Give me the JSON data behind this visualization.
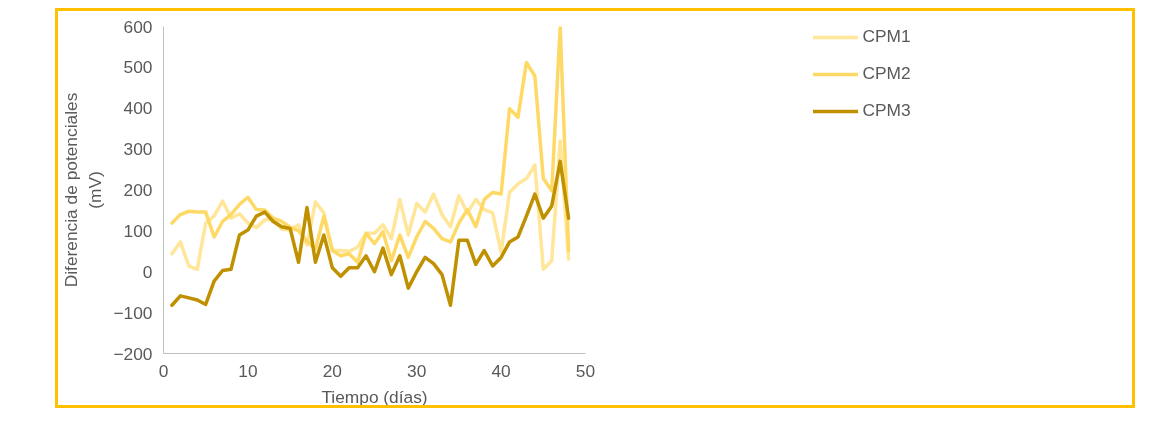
{
  "chart_data": {
    "type": "line",
    "xlabel": "Tiempo (días)",
    "ylabel": "Diferencia de potenciales (mV)",
    "x": [
      1,
      2,
      3,
      4,
      5,
      6,
      7,
      8,
      9,
      10,
      11,
      12,
      13,
      14,
      15,
      16,
      17,
      18,
      19,
      20,
      21,
      22,
      23,
      24,
      25,
      26,
      27,
      28,
      29,
      30,
      31,
      32,
      33,
      34,
      35,
      36,
      37,
      38,
      39,
      40,
      41,
      42,
      43,
      44,
      45,
      46,
      47,
      48
    ],
    "series": [
      {
        "name": "CPM1",
        "color": "#ffe699",
        "values": [
          44,
          73,
          14,
          6,
          119,
          136,
          173,
          131,
          142,
          119,
          108,
          127,
          129,
          104,
          102,
          115,
          65,
          171,
          144,
          52,
          52,
          50,
          60,
          94,
          94,
          115,
          81,
          177,
          90,
          167,
          146,
          190,
          140,
          110,
          186,
          144,
          177,
          152,
          144,
          48,
          194,
          215,
          228,
          261,
          6,
          27,
          320,
          31
        ]
      },
      {
        "name": "CPM2",
        "color": "#ffd966",
        "values": [
          119,
          140,
          148,
          146,
          146,
          85,
          123,
          140,
          165,
          182,
          152,
          151,
          131,
          123,
          109,
          100,
          75,
          55,
          136,
          52,
          39,
          44,
          23,
          94,
          69,
          98,
          27,
          90,
          35,
          85,
          123,
          106,
          81,
          73,
          119,
          152,
          110,
          177,
          194,
          190,
          399,
          378,
          512,
          479,
          228,
          198,
          600,
          52
        ]
      },
      {
        "name": "CPM3",
        "color": "#bf9000",
        "values": [
          -82,
          -59,
          -64,
          -69,
          -80,
          -23,
          3,
          6,
          90,
          102,
          136,
          146,
          123,
          110,
          106,
          23,
          157,
          23,
          90,
          10,
          -11,
          10,
          10,
          39,
          0,
          58,
          -7,
          39,
          -40,
          0,
          35,
          20,
          -7,
          -82,
          77,
          77,
          18,
          52,
          14,
          35,
          73,
          85,
          136,
          190,
          131,
          161,
          270,
          131
        ]
      }
    ],
    "xlim": [
      0,
      50
    ],
    "xticks": [
      0,
      10,
      20,
      30,
      40,
      50
    ],
    "ylim": [
      -200,
      600
    ],
    "yticks": [
      -200,
      -100,
      0,
      100,
      200,
      300,
      400,
      500,
      600
    ],
    "grid": false,
    "legend": "top right",
    "line_style": "solid",
    "marker": "none"
  }
}
